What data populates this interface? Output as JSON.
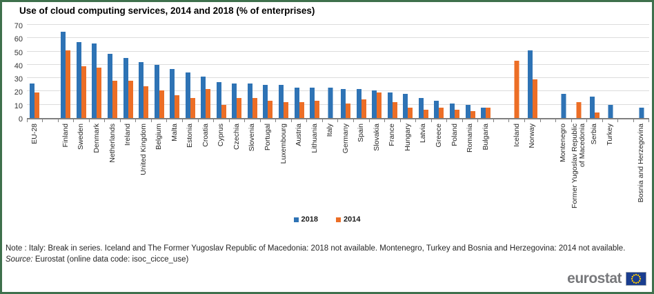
{
  "title": "Use of cloud computing services, 2014 and 2018 (% of enterprises)",
  "chart_data": {
    "type": "bar",
    "title": "Use of cloud computing services, 2014 and 2018 (% of enterprises)",
    "xlabel": "",
    "ylabel": "",
    "ylim": [
      0,
      70
    ],
    "yticks": [
      0,
      10,
      20,
      30,
      40,
      50,
      60,
      70
    ],
    "grid": true,
    "legend_position": "bottom-center",
    "categories": [
      "EU-28",
      "",
      "Finland",
      "Sweden",
      "Denmark",
      "Netherlands",
      "Ireland",
      "United Kingdom",
      "Belgium",
      "Malta",
      "Estonia",
      "Croatia",
      "Cyprus",
      "Czechia",
      "Slovenia",
      "Portugal",
      "Luxembourg",
      "Austria",
      "Lithuania",
      "Italy",
      "Germany",
      "Spain",
      "Slovakia",
      "France",
      "Hungary",
      "Latvia",
      "Greece",
      "Poland",
      "Romania",
      "Bulgaria",
      "",
      "Iceland",
      "Norway",
      "",
      "Montenegro",
      "Former Yugoslav Republic\nof Macedonia",
      "Serbia",
      "Turkey",
      "",
      "Bosnia and Herzegovina"
    ],
    "series": [
      {
        "name": "2018",
        "color": "#2e73b5",
        "values": [
          26,
          null,
          65,
          57,
          56,
          48,
          45,
          42,
          40,
          37,
          34,
          31,
          27,
          26,
          26,
          25,
          25,
          23,
          23,
          23,
          22,
          22,
          21,
          19,
          18,
          15,
          13,
          11,
          10,
          8,
          null,
          null,
          51,
          null,
          18,
          null,
          16,
          10,
          null,
          8
        ]
      },
      {
        "name": "2014",
        "color": "#ec6e26",
        "values": [
          19,
          null,
          51,
          39,
          38,
          28,
          28,
          24,
          21,
          17,
          15,
          22,
          10,
          15,
          15,
          13,
          12,
          12,
          13,
          null,
          11,
          14,
          19,
          12,
          8,
          6,
          8,
          6,
          5,
          8,
          null,
          43,
          29,
          null,
          null,
          12,
          4,
          null,
          null,
          null
        ]
      }
    ]
  },
  "note": "Note : Italy: Break in series. Iceland and The Former Yugoslav Republic of Macedonia: 2018 not available. Montenegro, Turkey and Bosnia and Herzegovina: 2014 not available.",
  "source": {
    "label": "Source:",
    "text": "Eurostat (online data code: isoc_cicce_use)"
  },
  "logo": {
    "text": "eurostat",
    "flag": "eu-flag-icon"
  },
  "colors": {
    "bar_2018": "#2e73b5",
    "bar_2014": "#ec6e26",
    "frame_border": "#3e704c",
    "grid_line": "#dcdcdc",
    "axis_line": "#7f7f7f",
    "logo_gray": "#77787b",
    "flag_blue": "#1a3d8f",
    "flag_stars": "#ffcc00"
  }
}
